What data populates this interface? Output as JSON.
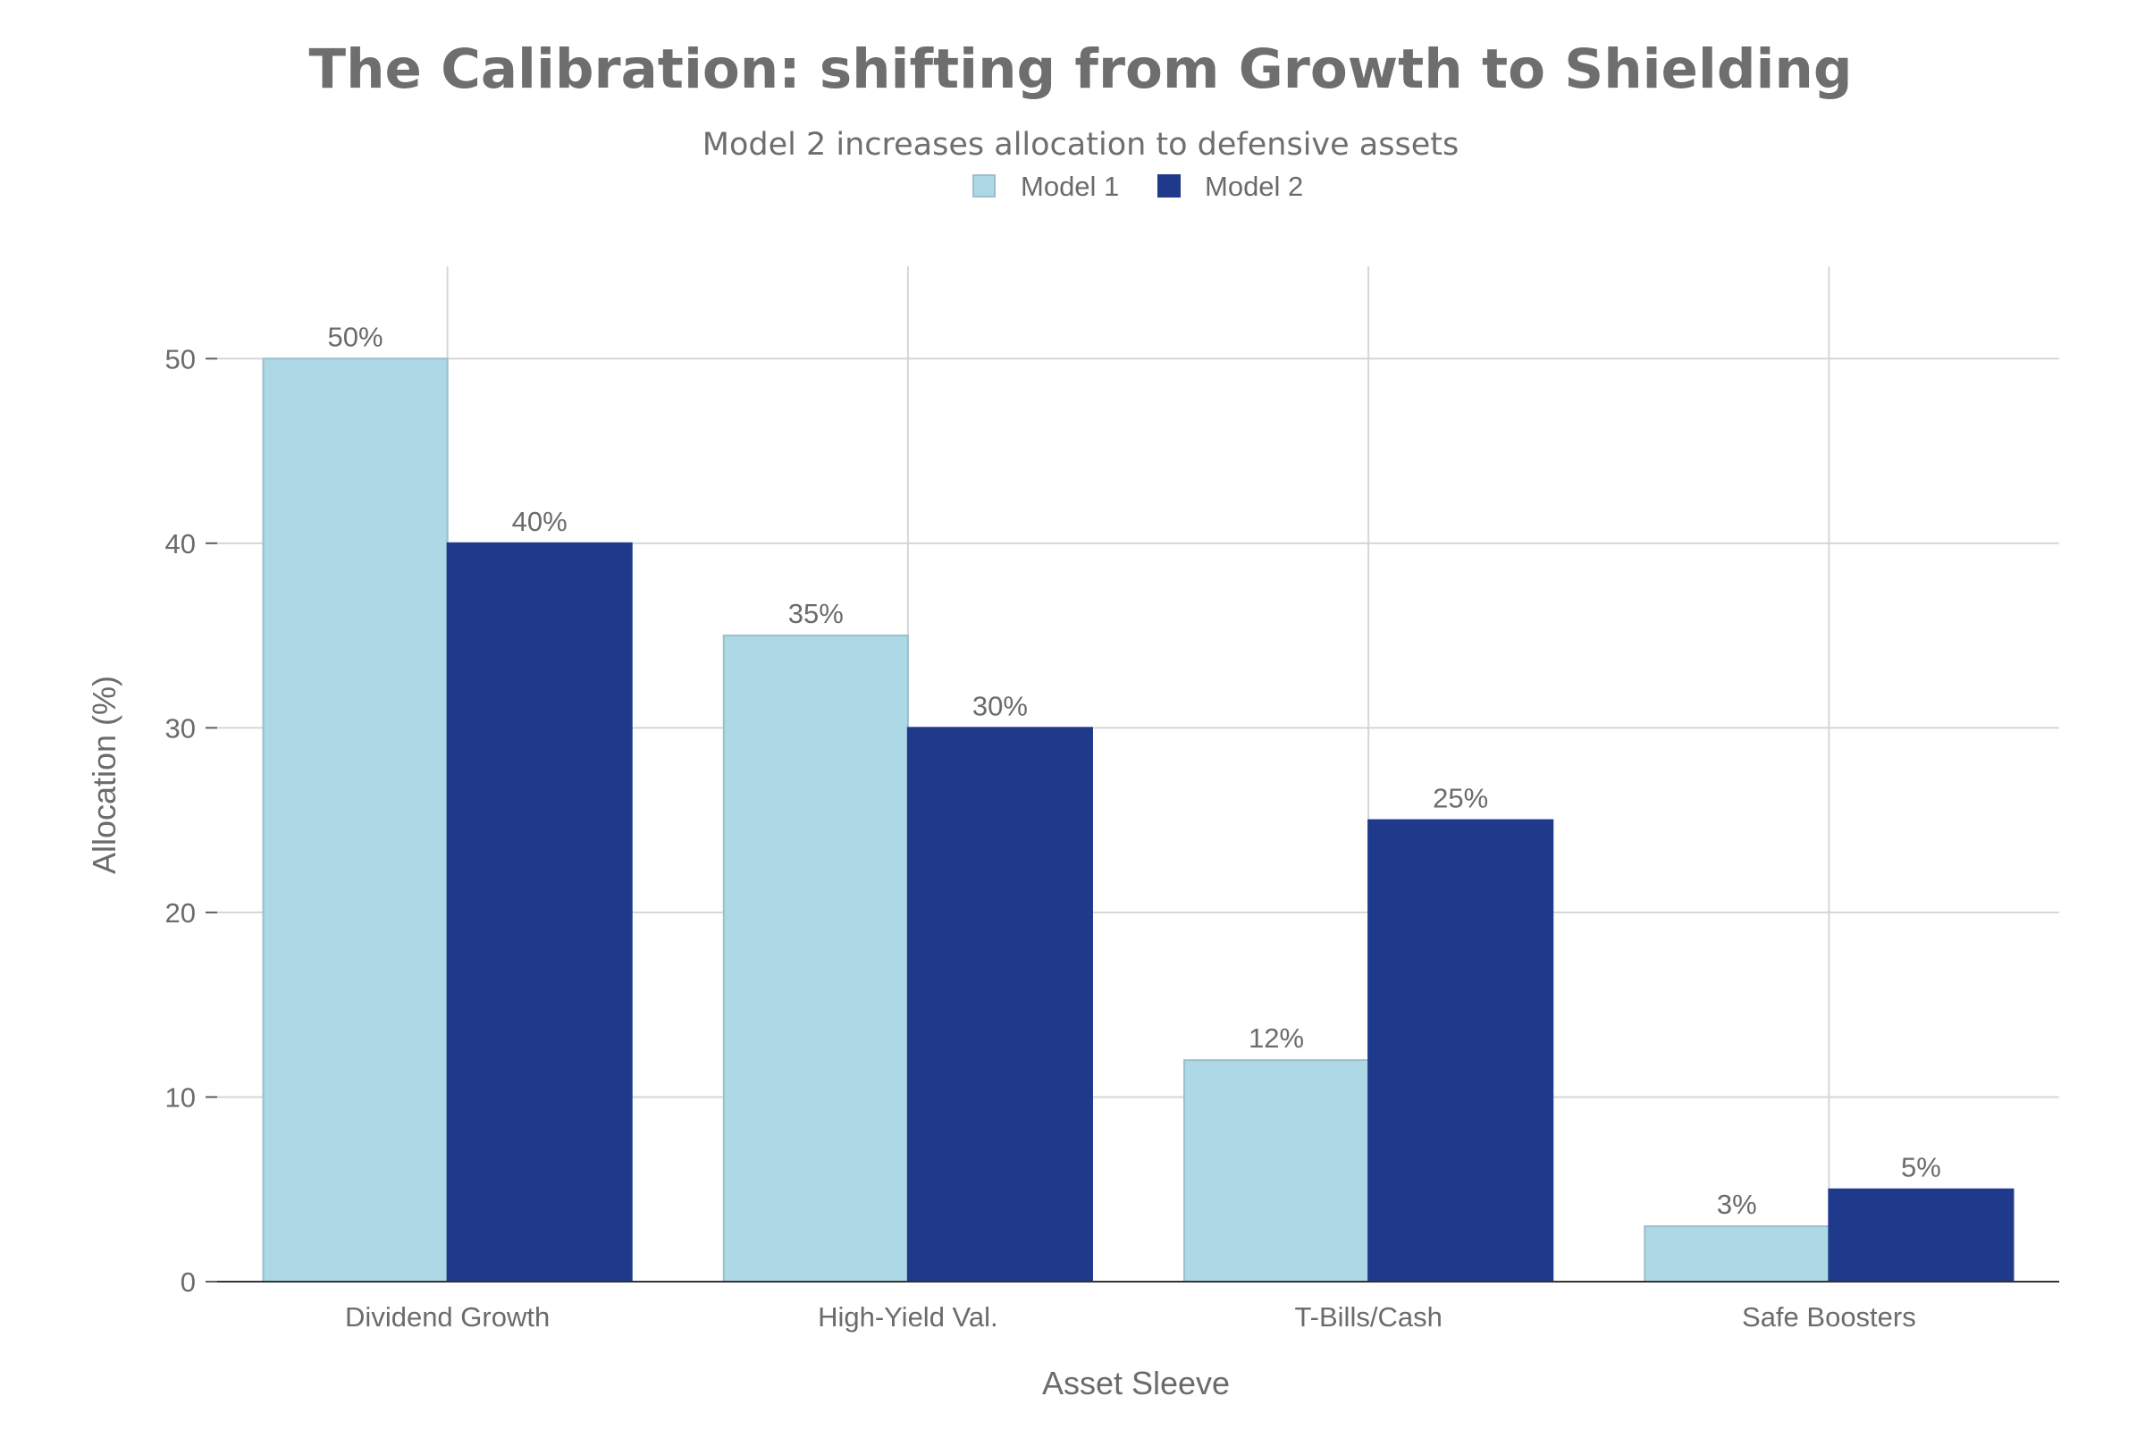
{
  "chart_data": {
    "type": "bar",
    "title": "The Calibration: shifting from Growth to Shielding",
    "subtitle": "Model 2 increases allocation to defensive assets",
    "xlabel": "Asset Sleeve",
    "ylabel": "Allocation (%)",
    "categories": [
      "Dividend Growth",
      "High-Yield Val.",
      "T-Bills/Cash",
      "Safe Boosters"
    ],
    "series": [
      {
        "name": "Model 1",
        "values": [
          50,
          35,
          12,
          3
        ],
        "labels": [
          "50%",
          "35%",
          "12%",
          "3%"
        ],
        "color": "#add8e6"
      },
      {
        "name": "Model 2",
        "values": [
          40,
          30,
          25,
          5
        ],
        "labels": [
          "40%",
          "30%",
          "25%",
          "5%"
        ],
        "color": "#1f3a8a"
      }
    ],
    "ylim": [
      0,
      55
    ],
    "yticks": [
      0,
      10,
      20,
      30,
      40,
      50
    ],
    "grid": true,
    "legend_position": "top-center"
  }
}
